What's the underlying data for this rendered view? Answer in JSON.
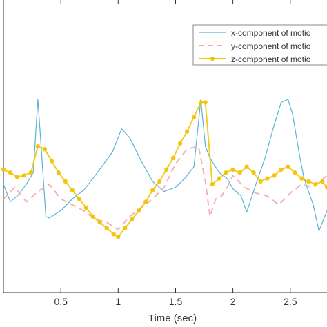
{
  "colors": {
    "x_series": "#5ab4d6",
    "y_series": "#f4a3a8",
    "z_series": "#f2c200",
    "axis": "#333333"
  },
  "chart_data": {
    "type": "line",
    "title": "",
    "xlabel": "Time (sec)",
    "ylabel": "",
    "xlim": [
      0,
      2.82
    ],
    "ylim": [
      0,
      1
    ],
    "grid": false,
    "legend_position": "top-right",
    "x_ticks": [
      "0.5",
      "1",
      "1.5",
      "2",
      "2.5"
    ],
    "series": [
      {
        "name": "x-component of motio",
        "style": "solid",
        "marker": "none",
        "x": [
          0,
          0.06,
          0.12,
          0.2,
          0.26,
          0.3,
          0.33,
          0.37,
          0.4,
          0.5,
          0.6,
          0.7,
          0.8,
          0.95,
          1.03,
          1.1,
          1.2,
          1.3,
          1.4,
          1.5,
          1.58,
          1.66,
          1.72,
          1.76,
          1.8,
          1.88,
          1.95,
          2.0,
          2.07,
          2.12,
          2.2,
          2.28,
          2.35,
          2.42,
          2.48,
          2.52,
          2.58,
          2.62,
          2.7,
          2.75,
          2.82
        ],
        "y": [
          0.37,
          0.31,
          0.33,
          0.37,
          0.41,
          0.66,
          0.49,
          0.26,
          0.255,
          0.28,
          0.32,
          0.35,
          0.4,
          0.48,
          0.56,
          0.53,
          0.45,
          0.38,
          0.345,
          0.36,
          0.39,
          0.43,
          0.66,
          0.5,
          0.46,
          0.41,
          0.39,
          0.355,
          0.33,
          0.275,
          0.37,
          0.46,
          0.56,
          0.65,
          0.66,
          0.61,
          0.47,
          0.39,
          0.3,
          0.21,
          0.28
        ]
      },
      {
        "name": "y-component of motio",
        "style": "dashed",
        "marker": "none",
        "x": [
          0,
          0.1,
          0.2,
          0.3,
          0.4,
          0.5,
          0.6,
          0.7,
          0.8,
          0.9,
          1.0,
          1.1,
          1.2,
          1.3,
          1.4,
          1.5,
          1.6,
          1.7,
          1.76,
          1.8,
          1.85,
          1.9,
          1.95,
          2.0,
          2.1,
          2.2,
          2.3,
          2.4,
          2.5,
          2.6,
          2.7,
          2.82
        ],
        "y": [
          0.32,
          0.36,
          0.31,
          0.345,
          0.37,
          0.32,
          0.3,
          0.28,
          0.25,
          0.24,
          0.215,
          0.26,
          0.29,
          0.32,
          0.36,
          0.44,
          0.49,
          0.5,
          0.38,
          0.26,
          0.32,
          0.33,
          0.36,
          0.4,
          0.36,
          0.34,
          0.33,
          0.3,
          0.34,
          0.37,
          0.36,
          0.4
        ]
      },
      {
        "name": "z-component of motio",
        "style": "solid",
        "marker": "star",
        "x": [
          0,
          0.06,
          0.12,
          0.18,
          0.24,
          0.3,
          0.36,
          0.42,
          0.48,
          0.54,
          0.6,
          0.66,
          0.72,
          0.78,
          0.84,
          0.9,
          0.96,
          1.0,
          1.06,
          1.12,
          1.18,
          1.24,
          1.3,
          1.36,
          1.42,
          1.48,
          1.54,
          1.6,
          1.66,
          1.72,
          1.76,
          1.82,
          1.88,
          1.94,
          2.0,
          2.06,
          2.12,
          2.18,
          2.24,
          2.3,
          2.36,
          2.42,
          2.48,
          2.54,
          2.6,
          2.66,
          2.72,
          2.78,
          2.82
        ],
        "y": [
          0.42,
          0.41,
          0.395,
          0.4,
          0.41,
          0.5,
          0.49,
          0.45,
          0.41,
          0.38,
          0.35,
          0.32,
          0.29,
          0.26,
          0.24,
          0.22,
          0.2,
          0.19,
          0.22,
          0.25,
          0.28,
          0.31,
          0.35,
          0.38,
          0.42,
          0.46,
          0.51,
          0.55,
          0.6,
          0.65,
          0.65,
          0.37,
          0.39,
          0.41,
          0.42,
          0.41,
          0.43,
          0.41,
          0.38,
          0.39,
          0.4,
          0.42,
          0.43,
          0.41,
          0.39,
          0.38,
          0.37,
          0.38,
          0.36
        ]
      }
    ]
  }
}
